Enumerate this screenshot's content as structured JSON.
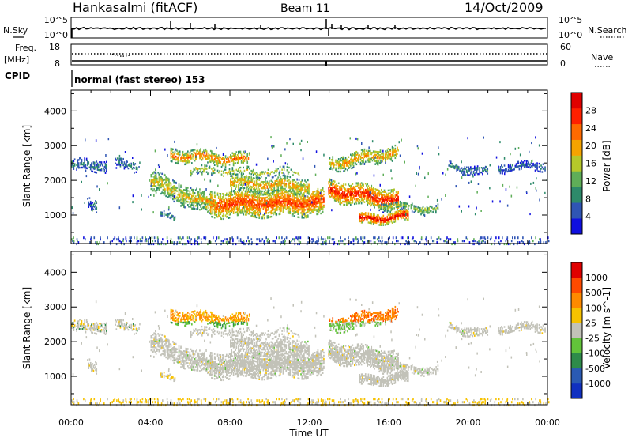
{
  "header": {
    "station": "Hankasalmi (fitACF)",
    "beam": "Beam 11",
    "date": "14/Oct/2009"
  },
  "noise_panel": {
    "left_label": "N.Sky",
    "right_label": "N.Search",
    "left_ticks": [
      "10^5",
      "10^0"
    ],
    "right_ticks": [
      "10^5",
      "10^0"
    ]
  },
  "freq_panel": {
    "left_label_1": "Freq.",
    "left_label_2": "[MHz]",
    "right_label": "Nave",
    "left_ticks": [
      "18",
      "8"
    ],
    "right_ticks": [
      "60",
      "0"
    ]
  },
  "cpid": {
    "label": "CPID",
    "text": "normal (fast stereo) 153"
  },
  "x_axis": {
    "label": "Time UT",
    "ticks": [
      "00:00",
      "04:00",
      "08:00",
      "12:00",
      "16:00",
      "20:00",
      "00:00"
    ]
  },
  "colors": {
    "power_scale": [
      "#1010e0",
      "#2f55b4",
      "#2d8a6a",
      "#5fae58",
      "#b6c82a",
      "#f5a300",
      "#ff6a00",
      "#ff2000",
      "#e00000"
    ],
    "velocity_scale": [
      "#e00000",
      "#ff4a00",
      "#ff8a00",
      "#f7c200",
      "#c2c2b8",
      "#62c43a",
      "#2e8b4a",
      "#2a5ab3",
      "#1030c0"
    ],
    "ground_scatter": "#c2c2b8"
  },
  "chart_data": [
    {
      "type": "heatmap",
      "panel": "power",
      "ylabel": "Slant Range [km]",
      "xlabel": "",
      "yticks": [
        "1000",
        "2000",
        "3000",
        "4000"
      ],
      "ylim": [
        180,
        4600
      ],
      "xlim_hours": [
        0,
        24
      ],
      "colorbar": {
        "label": "Power [dB]",
        "ticks": [
          "4",
          "8",
          "12",
          "16",
          "20",
          "24",
          "28"
        ],
        "range": [
          0,
          32
        ]
      }
    },
    {
      "type": "heatmap",
      "panel": "velocity",
      "ylabel": "Slant Range [km]",
      "xlabel": "Time UT",
      "yticks": [
        "1000",
        "2000",
        "3000",
        "4000"
      ],
      "ylim": [
        180,
        4600
      ],
      "xlim_hours": [
        0,
        24
      ],
      "colorbar": {
        "label": "Velocity [m s^-1]",
        "ticks": [
          "1000",
          "500",
          "100",
          "25",
          "-25",
          "-100",
          "-500",
          "-1000"
        ]
      }
    }
  ]
}
